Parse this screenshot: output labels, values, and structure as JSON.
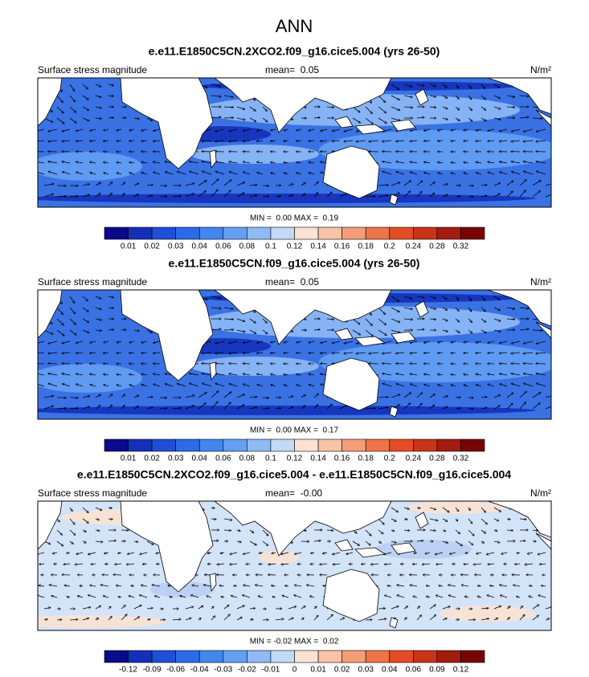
{
  "title": "ANN",
  "colorbar_colors": [
    "#0a0a8a",
    "#1430b8",
    "#1e4fd6",
    "#2c6ae8",
    "#4287f0",
    "#649ff4",
    "#8fbaf6",
    "#c2daf8",
    "#fbe2d2",
    "#f7c4a8",
    "#f39e78",
    "#ee744a",
    "#e44c26",
    "#c93419",
    "#a21c10",
    "#780505"
  ],
  "panels": [
    {
      "title": "e.e11.E1850C5CN.2XCO2.f09_g16.cice5.004 (yrs 26-50)",
      "label": "Surface stress magnitude",
      "mean": "mean=  0.05",
      "units": "N/m²",
      "minmax": "MIN =  0.00 MAX =  0.19",
      "colorbar": [
        "0.01",
        "0.02",
        "0.03",
        "0.04",
        "0.06",
        "0.08",
        "0.1",
        "0.12",
        "0.14",
        "0.16",
        "0.18",
        "0.2",
        "0.24",
        "0.28",
        "0.32"
      ]
    },
    {
      "title": "e.e11.E1850C5CN.f09_g16.cice5.004 (yrs 26-50)",
      "label": "Surface stress magnitude",
      "mean": "mean=  0.05",
      "units": "N/m²",
      "minmax": "MIN =  0.00 MAX =  0.17",
      "colorbar": [
        "0.01",
        "0.02",
        "0.03",
        "0.04",
        "0.06",
        "0.08",
        "0.1",
        "0.12",
        "0.14",
        "0.16",
        "0.18",
        "0.2",
        "0.24",
        "0.28",
        "0.32"
      ]
    },
    {
      "title": "e.e11.E1850C5CN.2XCO2.f09_g16.cice5.004 - e.e11.E1850C5CN.f09_g16.cice5.004",
      "label": "Surface stress magnitude",
      "mean": "mean=  -0.00",
      "units": "N/m²",
      "minmax": "MIN = -0.02 MAX =  0.02",
      "colorbar": [
        "-0.12",
        "-0.09",
        "-0.06",
        "-0.04",
        "-0.03",
        "-0.02",
        "-0.01",
        "0",
        "0.01",
        "0.02",
        "0.03",
        "0.04",
        "0.06",
        "0.09",
        "0.12"
      ]
    }
  ]
}
